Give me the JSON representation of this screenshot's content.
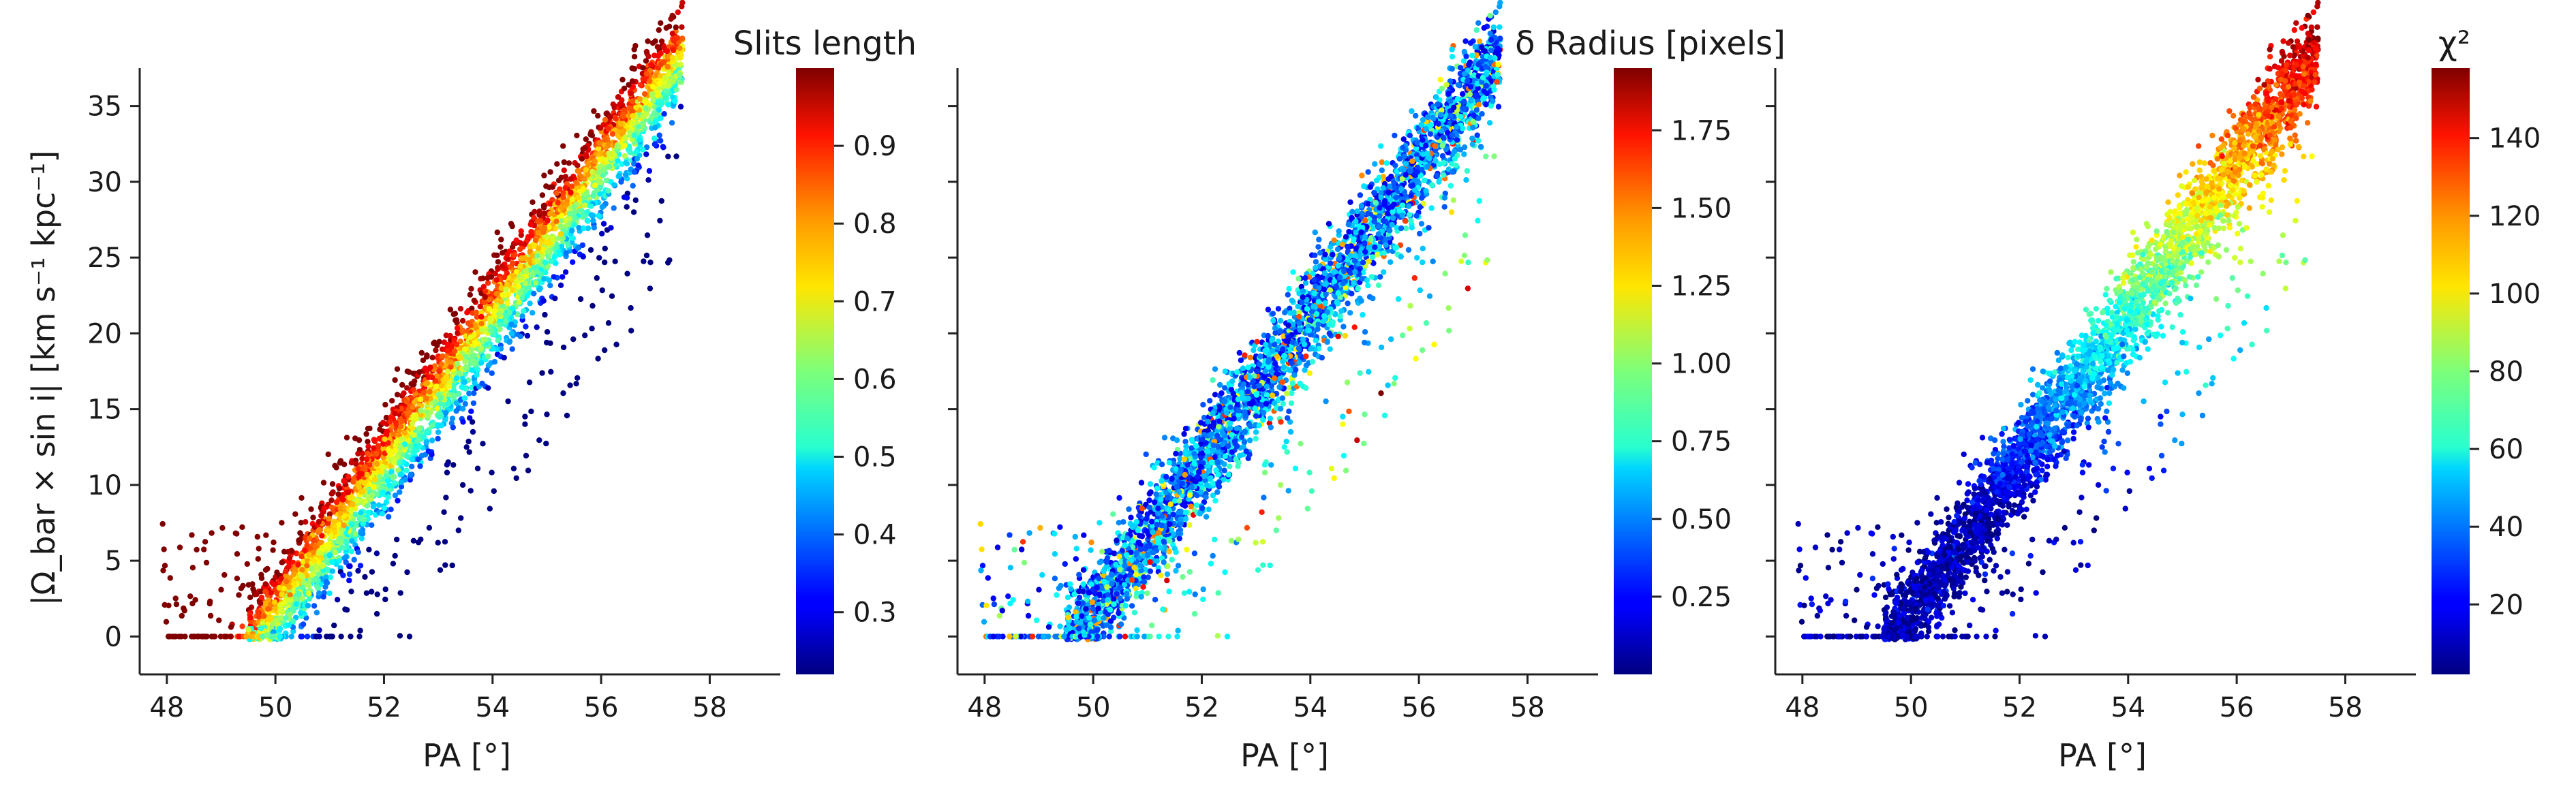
{
  "chart_data": [
    {
      "type": "scatter",
      "panel": "left",
      "xlabel": "PA [°]",
      "ylabel": "|Ω_bar × sin i|  [km s⁻¹ kpc⁻¹]",
      "xlim": [
        47.5,
        59.3
      ],
      "ylim": [
        -2.5,
        37.5
      ],
      "xticks": [
        "48",
        "50",
        "52",
        "54",
        "56",
        "58"
      ],
      "yticks": [
        "0",
        "5",
        "10",
        "15",
        "20",
        "25",
        "30",
        "35"
      ],
      "colorbar": {
        "title": "Slits length",
        "range": [
          0.22,
          1.0
        ],
        "ticks": [
          "0.3",
          "0.4",
          "0.5",
          "0.6",
          "0.7",
          "0.8",
          "0.9"
        ],
        "colormap": "jet"
      },
      "trend": {
        "x_start": 49.8,
        "x_end": 57.0,
        "y_start": 0.5,
        "y_end": 36.0,
        "note": "color increases above the trend line, decreases below"
      }
    },
    {
      "type": "scatter",
      "panel": "middle",
      "xlabel": "PA [°]",
      "xlim": [
        47.5,
        59.3
      ],
      "ylim": [
        -2.5,
        37.5
      ],
      "xticks": [
        "48",
        "50",
        "52",
        "54",
        "56",
        "58"
      ],
      "colorbar": {
        "title": "δ Radius [pixels]",
        "range": [
          0.0,
          1.95
        ],
        "ticks": [
          "0.25",
          "0.50",
          "0.75",
          "1.00",
          "1.25",
          "1.50",
          "1.75"
        ],
        "colormap": "jet"
      }
    },
    {
      "type": "scatter",
      "panel": "right",
      "xlabel": "PA [°]",
      "xlim": [
        47.5,
        59.3
      ],
      "ylim": [
        -2.5,
        37.5
      ],
      "xticks": [
        "48",
        "50",
        "52",
        "54",
        "56",
        "58"
      ],
      "colorbar": {
        "title": "χ²",
        "range": [
          2,
          158
        ],
        "ticks": [
          "20",
          "40",
          "60",
          "80",
          "100",
          "120",
          "140"
        ],
        "colormap": "jet"
      }
    }
  ]
}
